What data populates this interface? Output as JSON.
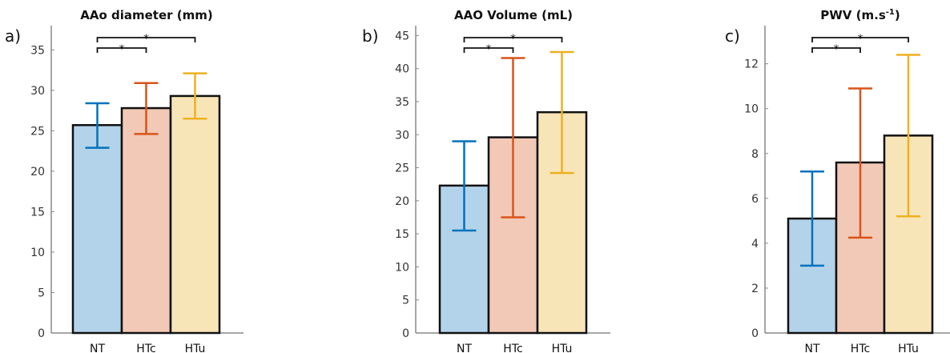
{
  "chart_data": [
    {
      "type": "bar",
      "panel_label": "a)",
      "title": "AAo diameter (mm)",
      "categories": [
        "NT",
        "HTc",
        "HTu"
      ],
      "values": [
        25.7,
        27.8,
        29.3
      ],
      "error_low": [
        22.9,
        24.6,
        26.5
      ],
      "error_high": [
        28.4,
        30.9,
        32.1
      ],
      "ylim": [
        0,
        38
      ],
      "yticks": [
        0,
        5,
        10,
        15,
        20,
        25,
        30,
        35
      ],
      "ytick_labels": [
        "0",
        "5",
        "10",
        "15",
        "20",
        "25",
        "30",
        "35"
      ],
      "significance": [
        {
          "from": "NT",
          "to": "HTc",
          "label": "*"
        },
        {
          "from": "NT",
          "to": "HTu",
          "label": "*"
        }
      ]
    },
    {
      "type": "bar",
      "panel_label": "b)",
      "title": "AAO Volume (mL)",
      "categories": [
        "NT",
        "HTc",
        "HTu"
      ],
      "values": [
        22.3,
        29.6,
        33.4
      ],
      "error_low": [
        15.5,
        17.5,
        24.2
      ],
      "error_high": [
        29.0,
        41.6,
        42.5
      ],
      "ylim": [
        0,
        46.5
      ],
      "yticks": [
        0,
        5,
        10,
        15,
        20,
        25,
        30,
        35,
        40,
        45
      ],
      "ytick_labels": [
        "0",
        "5",
        "10",
        "15",
        "20",
        "25",
        "30",
        "35",
        "40",
        "45"
      ],
      "significance": [
        {
          "from": "NT",
          "to": "HTc",
          "label": "*"
        },
        {
          "from": "NT",
          "to": "HTu",
          "label": "*"
        }
      ]
    },
    {
      "type": "bar",
      "panel_label": "c)",
      "title_main": "PWV (m.s",
      "title_sup": "-1",
      "title_end": ")",
      "categories": [
        "NT",
        "HTc",
        "HTu"
      ],
      "values": [
        5.1,
        7.6,
        8.8
      ],
      "error_low": [
        3.0,
        4.25,
        5.2
      ],
      "error_high": [
        7.2,
        10.9,
        12.4
      ],
      "ylim": [
        0,
        13.7
      ],
      "yticks": [
        0,
        2,
        4,
        6,
        8,
        10,
        12
      ],
      "ytick_labels": [
        "0",
        "2",
        "4",
        "6",
        "8",
        "10",
        "12"
      ],
      "significance": [
        {
          "from": "NT",
          "to": "HTc",
          "label": "*"
        },
        {
          "from": "NT",
          "to": "HTu",
          "label": "*"
        }
      ]
    }
  ],
  "colors": {
    "fills": [
      "#b3d3ea",
      "#f2c9b6",
      "#f8e5b7"
    ],
    "errors": [
      "#0072bd",
      "#d95319",
      "#edb120"
    ],
    "bar_edge": "#111111",
    "axis": "#888888"
  }
}
